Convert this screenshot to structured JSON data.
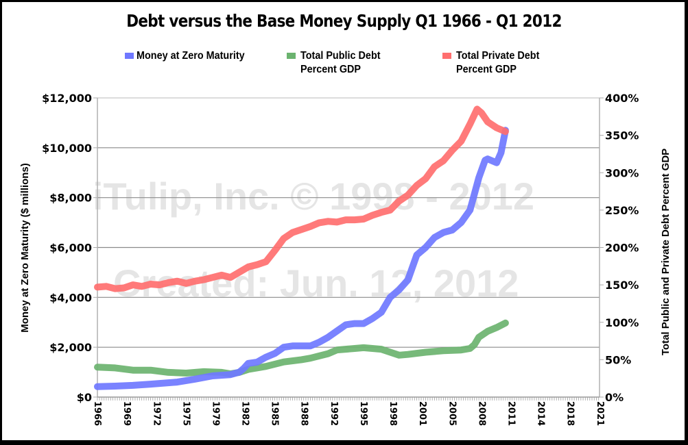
{
  "chart_data": {
    "type": "line",
    "title": "Debt versus the Base Money Supply Q1 1966 - Q1 2012",
    "xlabel": "",
    "ylabel_left": "Money at Zero Maturity ($ millions)",
    "ylabel_right": "Total Public and Private Debt Percent GDP",
    "xlim": [
      1966,
      2022.6
    ],
    "ylim_left": [
      0,
      12000
    ],
    "ylim_right": [
      0,
      400
    ],
    "grid": true,
    "legend_position": "top",
    "x_tick_labels": [
      "1966",
      "1969",
      "1972",
      "1975",
      "1979",
      "1982",
      "1985",
      "1988",
      "1992",
      "1995",
      "1998",
      "2001",
      "2005",
      "2008",
      "2011",
      "2014",
      "2018",
      "2021"
    ],
    "x_tick_values": [
      1966,
      1969.33,
      1972.67,
      1976,
      1979.33,
      1982.67,
      1986,
      1989.33,
      1992.67,
      1996,
      1999.33,
      2002.67,
      2006,
      2009.33,
      2012.67,
      2016,
      2019.33,
      2022.67
    ],
    "y_left_tick_labels": [
      "$0",
      "$2,000",
      "$4,000",
      "$6,000",
      "$8,000",
      "$10,000",
      "$12,000"
    ],
    "y_left_tick_values": [
      0,
      2000,
      4000,
      6000,
      8000,
      10000,
      12000
    ],
    "y_right_tick_labels": [
      "0%",
      "50%",
      "100%",
      "150%",
      "200%",
      "250%",
      "300%",
      "350%",
      "400%"
    ],
    "y_right_tick_values": [
      0,
      50,
      100,
      150,
      200,
      250,
      300,
      350,
      400
    ],
    "series": [
      {
        "name": "Money at Zero Maturity",
        "axis": "left",
        "color": "#6f78ff",
        "x": [
          1966,
          1968,
          1970,
          1972,
          1975,
          1977,
          1979,
          1981,
          1982,
          1982.5,
          1983,
          1984,
          1985,
          1986,
          1987,
          1988,
          1990,
          1991,
          1992,
          1993,
          1994,
          1995,
          1996,
          1997,
          1998,
          1999,
          2000,
          2001,
          2002,
          2003,
          2004,
          2005,
          2006,
          2007,
          2008,
          2009,
          2009.7,
          2010,
          2011,
          2011.5,
          2012
        ],
        "values": [
          420,
          440,
          470,
          520,
          600,
          720,
          850,
          900,
          1000,
          1150,
          1350,
          1400,
          1600,
          1750,
          2000,
          2050,
          2050,
          2200,
          2400,
          2650,
          2900,
          2950,
          2950,
          3150,
          3400,
          4000,
          4300,
          4700,
          5700,
          6000,
          6400,
          6600,
          6700,
          7000,
          7500,
          8800,
          9500,
          9550,
          9400,
          9800,
          10700
        ]
      },
      {
        "name": "Total Public Debt Percent GDP",
        "axis": "right",
        "color": "#6bb36f",
        "x": [
          1966,
          1968,
          1970,
          1972,
          1974,
          1976,
          1978,
          1980,
          1981,
          1982,
          1983,
          1985,
          1987,
          1989,
          1990,
          1992,
          1993,
          1995,
          1996,
          1998,
          2000,
          2001,
          2003,
          2005,
          2007,
          2008,
          2008.5,
          2009,
          2010,
          2011,
          2012
        ],
        "values": [
          40,
          39,
          36,
          36,
          33,
          32,
          34,
          33,
          31,
          33,
          37,
          41,
          47,
          50,
          52,
          58,
          63,
          65,
          66,
          64,
          56,
          57,
          60,
          62,
          63,
          65,
          70,
          80,
          88,
          93,
          99
        ]
      },
      {
        "name": "Total Private Debt Percent GDP",
        "axis": "right",
        "color": "#ff6f6f",
        "x": [
          1966,
          1967,
          1968,
          1969,
          1970,
          1971,
          1972,
          1973,
          1974,
          1975,
          1976,
          1977,
          1978,
          1979,
          1980,
          1981,
          1982,
          1983,
          1984,
          1985,
          1986,
          1987,
          1988,
          1989,
          1990,
          1991,
          1992,
          1993,
          1994,
          1995,
          1996,
          1997,
          1998,
          1999,
          2000,
          2001,
          2002,
          2003,
          2004,
          2005,
          2006,
          2007,
          2008,
          2008.8,
          2009.3,
          2010,
          2011,
          2012
        ],
        "values": [
          147,
          148,
          145,
          146,
          150,
          148,
          151,
          150,
          153,
          155,
          152,
          155,
          157,
          160,
          163,
          160,
          167,
          174,
          177,
          181,
          196,
          212,
          220,
          224,
          228,
          233,
          235,
          234,
          237,
          237,
          238,
          243,
          247,
          250,
          262,
          270,
          283,
          292,
          308,
          316,
          330,
          342,
          365,
          385,
          380,
          368,
          360,
          355
        ]
      }
    ]
  },
  "watermark": {
    "line1": "iTulip, Inc. © 1998 - 2012",
    "line2": "Created: Jun. 12, 2012"
  }
}
